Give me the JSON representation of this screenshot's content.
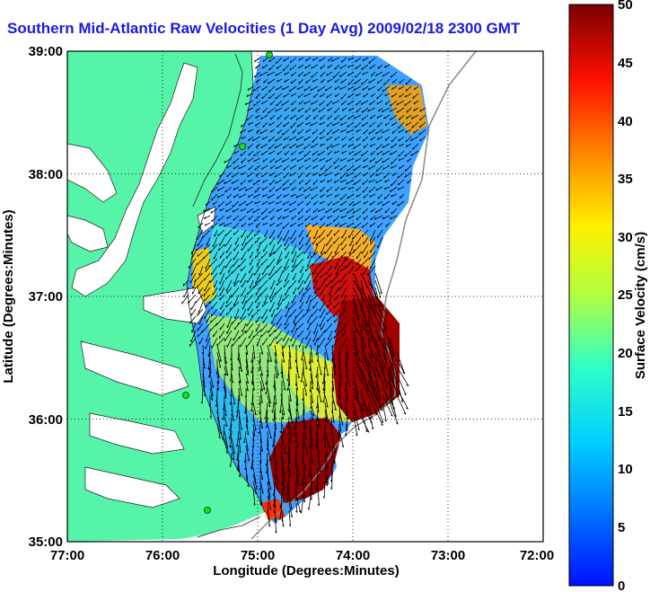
{
  "title": "Southern Mid-Atlantic Raw Velocities (1 Day Avg) 2009/02/18 2300 GMT",
  "x_axis": {
    "label": "Longitude (Degrees:Minutes)",
    "ticks": [
      "77:00",
      "76:00",
      "75:00",
      "74:00",
      "73:00",
      "72:00"
    ]
  },
  "y_axis": {
    "label": "Latitude (Degrees:Minutes)",
    "ticks": [
      "39:00",
      "38:00",
      "37:00",
      "36:00",
      "35:00"
    ]
  },
  "colorbar": {
    "label": "Surface Velocity (cm/s)",
    "ticks": [
      "50",
      "45",
      "40",
      "35",
      "30",
      "25",
      "20",
      "15",
      "10",
      "5",
      "0"
    ],
    "min": 0,
    "max": 50
  },
  "colors": {
    "land": "#55f4a8",
    "title": "#1a1adf",
    "vector": "#000000",
    "grid": "#000000"
  }
}
